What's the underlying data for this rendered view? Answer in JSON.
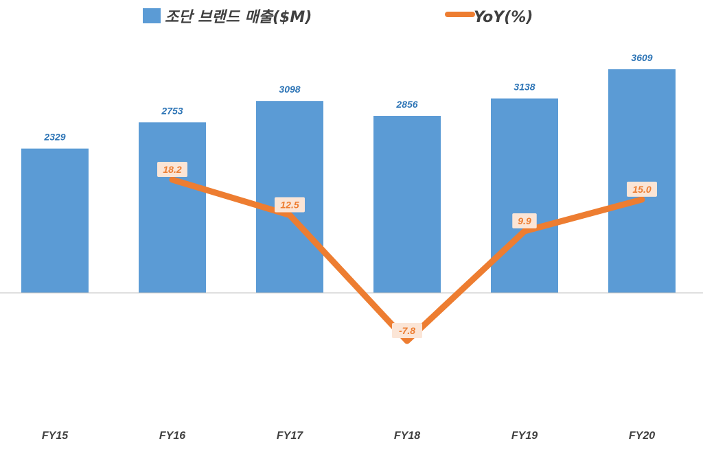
{
  "chart_data": {
    "type": "bar+line",
    "categories": [
      "FY15",
      "FY16",
      "FY17",
      "FY18",
      "FY19",
      "FY20"
    ],
    "series": [
      {
        "name": "조단 브랜드 매출($M)",
        "type": "bar",
        "color": "#5b9bd5",
        "values": [
          2329,
          2753,
          3098,
          2856,
          3138,
          3609
        ],
        "labels": [
          "2329",
          "2753",
          "3098",
          "2856",
          "3138",
          "3609"
        ]
      },
      {
        "name": "YoY(%)",
        "type": "line",
        "color": "#ed7d31",
        "values": [
          null,
          18.2,
          12.5,
          -7.8,
          9.9,
          15.0
        ],
        "labels": [
          "",
          "18.2",
          "12.5",
          "-7.8",
          "9.9",
          "15.0"
        ]
      }
    ],
    "bar_axis_range": [
      0,
      3609
    ],
    "line_axis_range": [
      -7.8,
      18.2
    ],
    "legend_position": "top",
    "grid": false
  }
}
